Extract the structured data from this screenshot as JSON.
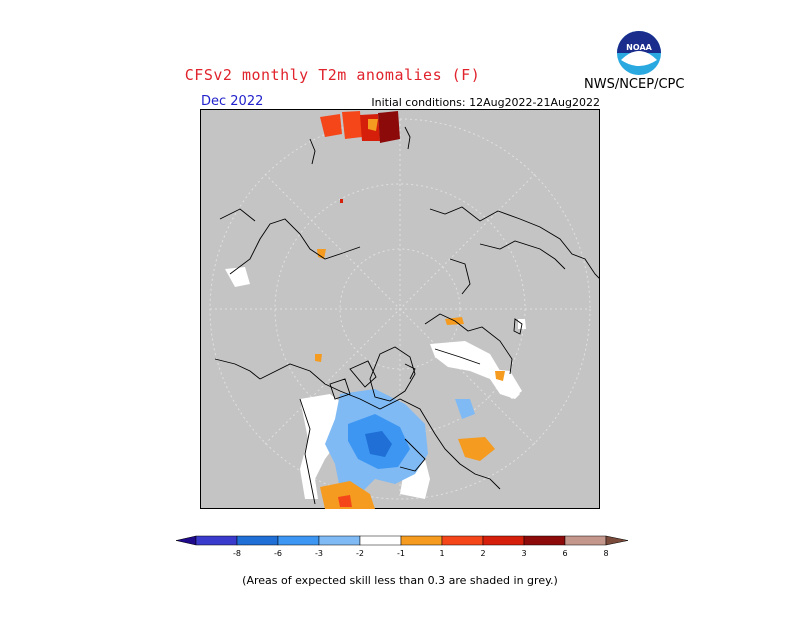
{
  "header": {
    "title": "CFSv2 monthly T2m anomalies (F)",
    "agency": "NWS/NCEP/CPC",
    "valid_month": "Dec 2022",
    "initial_conditions": "Initial conditions: 12Aug2022-21Aug2022",
    "logo_text": "NOAA"
  },
  "colorbar": {
    "labels": [
      "-8",
      "-6",
      "-3",
      "-2",
      "-1",
      "1",
      "2",
      "3",
      "6",
      "8"
    ],
    "colors": [
      "#1f0a8c",
      "#3a3acc",
      "#1f6fd6",
      "#3d97f2",
      "#7fbaf5",
      "#ffffff",
      "#f59b1f",
      "#f5461a",
      "#d61f0a",
      "#8c0a0a",
      "#c4978c",
      "#7a4a3a"
    ]
  },
  "map": {
    "grey_color": "#c4c4c4",
    "land_outline_color": "#000000"
  },
  "footnote": "(Areas of expected skill less than 0.3 are shaded in grey.)"
}
